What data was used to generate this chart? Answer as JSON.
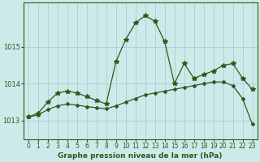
{
  "title": "Graphe pression niveau de la mer (hPa)",
  "bg_color": "#cceaea",
  "grid_color": "#aad4d4",
  "line_color": "#2d5a1b",
  "x_labels": [
    "0",
    "1",
    "2",
    "3",
    "4",
    "5",
    "6",
    "7",
    "8",
    "9",
    "10",
    "11",
    "12",
    "13",
    "14",
    "15",
    "16",
    "17",
    "18",
    "19",
    "20",
    "21",
    "22",
    "23"
  ],
  "ylim": [
    1012.5,
    1016.2
  ],
  "yticks": [
    1013,
    1014,
    1015
  ],
  "series1": [
    1013.1,
    1013.2,
    1013.5,
    1013.75,
    1013.8,
    1013.75,
    1013.65,
    1013.55,
    1013.45,
    1014.6,
    1015.2,
    1015.65,
    1015.85,
    1015.7,
    1015.15,
    1014.0,
    1014.55,
    1014.15,
    1014.25,
    1014.35,
    1014.5,
    1014.55,
    1014.15,
    1013.85
  ],
  "series2": [
    1013.1,
    1013.15,
    1013.3,
    1013.4,
    1013.45,
    1013.42,
    1013.38,
    1013.35,
    1013.32,
    1013.4,
    1013.5,
    1013.6,
    1013.7,
    1013.75,
    1013.8,
    1013.85,
    1013.9,
    1013.95,
    1014.0,
    1014.05,
    1014.05,
    1013.95,
    1013.6,
    1012.9
  ],
  "marker1": "*",
  "marker2": "D",
  "markersize1": 4,
  "markersize2": 2,
  "linewidth": 0.9,
  "title_fontsize": 7,
  "tick_fontsize": 5.5,
  "xlabel_fontsize": 6.5
}
